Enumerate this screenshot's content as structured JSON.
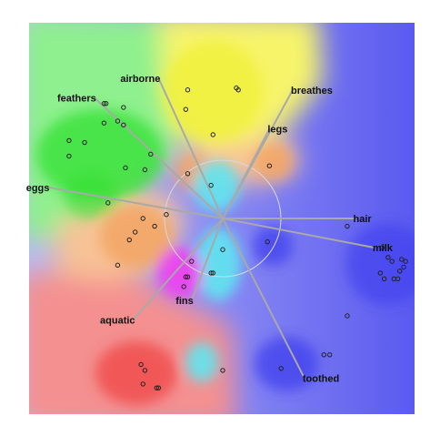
{
  "chart_data": {
    "type": "scatter",
    "title": "",
    "xlabel": "",
    "ylabel": "",
    "grid": false,
    "legend": "none",
    "center": [
      0,
      0
    ],
    "region_colors": {
      "green": "#3ee83e",
      "yellow": "#f5f53c",
      "orange": "#f5a050",
      "cyan": "#5fe6f0",
      "magenta": "#f040f0",
      "blue": "#4a4aee",
      "red": "#f04848"
    },
    "anchors": [
      {
        "label": "feathers",
        "x": -0.66,
        "y": 0.62
      },
      {
        "label": "airborne",
        "x": -0.33,
        "y": 0.72
      },
      {
        "label": "breathes",
        "x": 0.36,
        "y": 0.66
      },
      {
        "label": "legs",
        "x": 0.24,
        "y": 0.46
      },
      {
        "label": "eggs",
        "x": -0.9,
        "y": 0.16
      },
      {
        "label": "hair",
        "x": 0.68,
        "y": 0.0
      },
      {
        "label": "milk",
        "x": 0.78,
        "y": -0.15
      },
      {
        "label": "fins",
        "x": -0.16,
        "y": -0.42
      },
      {
        "label": "aquatic",
        "x": -0.46,
        "y": -0.52
      },
      {
        "label": "toothed",
        "x": 0.42,
        "y": -0.82
      }
    ],
    "points": [
      {
        "x": -0.61,
        "y": 0.59
      },
      {
        "x": -0.6,
        "y": 0.59
      },
      {
        "x": -0.51,
        "y": 0.57
      },
      {
        "x": -0.54,
        "y": 0.5
      },
      {
        "x": -0.61,
        "y": 0.49
      },
      {
        "x": -0.51,
        "y": 0.48
      },
      {
        "x": -0.79,
        "y": 0.4
      },
      {
        "x": -0.71,
        "y": 0.39
      },
      {
        "x": -0.79,
        "y": 0.32
      },
      {
        "x": -0.37,
        "y": 0.33
      },
      {
        "x": -0.5,
        "y": 0.26
      },
      {
        "x": -0.4,
        "y": 0.25
      },
      {
        "x": -0.59,
        "y": 0.08
      },
      {
        "x": -0.18,
        "y": 0.66
      },
      {
        "x": 0.07,
        "y": 0.67
      },
      {
        "x": 0.08,
        "y": 0.66
      },
      {
        "x": -0.19,
        "y": 0.56
      },
      {
        "x": -0.05,
        "y": 0.43
      },
      {
        "x": -0.18,
        "y": 0.23
      },
      {
        "x": 0.24,
        "y": 0.27
      },
      {
        "x": -0.06,
        "y": 0.17
      },
      {
        "x": -0.29,
        "y": 0.02
      },
      {
        "x": -0.41,
        "y": 0.0
      },
      {
        "x": -0.35,
        "y": -0.04
      },
      {
        "x": -0.45,
        "y": -0.07
      },
      {
        "x": -0.48,
        "y": -0.11
      },
      {
        "x": -0.54,
        "y": -0.24
      },
      {
        "x": 0.23,
        "y": -0.12
      },
      {
        "x": 0.0,
        "y": -0.16
      },
      {
        "x": -0.16,
        "y": -0.22
      },
      {
        "x": -0.06,
        "y": -0.28
      },
      {
        "x": -0.05,
        "y": -0.28
      },
      {
        "x": -0.18,
        "y": -0.3
      },
      {
        "x": -0.19,
        "y": -0.3
      },
      {
        "x": -0.2,
        "y": -0.35
      },
      {
        "x": 0.64,
        "y": -0.04
      },
      {
        "x": 0.82,
        "y": -0.15
      },
      {
        "x": 0.85,
        "y": -0.2
      },
      {
        "x": 0.87,
        "y": -0.22
      },
      {
        "x": 0.92,
        "y": -0.21
      },
      {
        "x": 0.94,
        "y": -0.22
      },
      {
        "x": 0.93,
        "y": -0.25
      },
      {
        "x": 0.91,
        "y": -0.27
      },
      {
        "x": 0.81,
        "y": -0.28
      },
      {
        "x": 0.83,
        "y": -0.31
      },
      {
        "x": 0.88,
        "y": -0.31
      },
      {
        "x": 0.9,
        "y": -0.31
      },
      {
        "x": 0.64,
        "y": -0.5
      },
      {
        "x": 0.52,
        "y": -0.7
      },
      {
        "x": 0.55,
        "y": -0.7
      },
      {
        "x": 0.3,
        "y": -0.77
      },
      {
        "x": 0.0,
        "y": -0.78
      },
      {
        "x": -0.42,
        "y": -0.75
      },
      {
        "x": -0.4,
        "y": -0.78
      },
      {
        "x": -0.41,
        "y": -0.85
      },
      {
        "x": -0.34,
        "y": -0.87
      },
      {
        "x": -0.33,
        "y": -0.87
      }
    ]
  }
}
